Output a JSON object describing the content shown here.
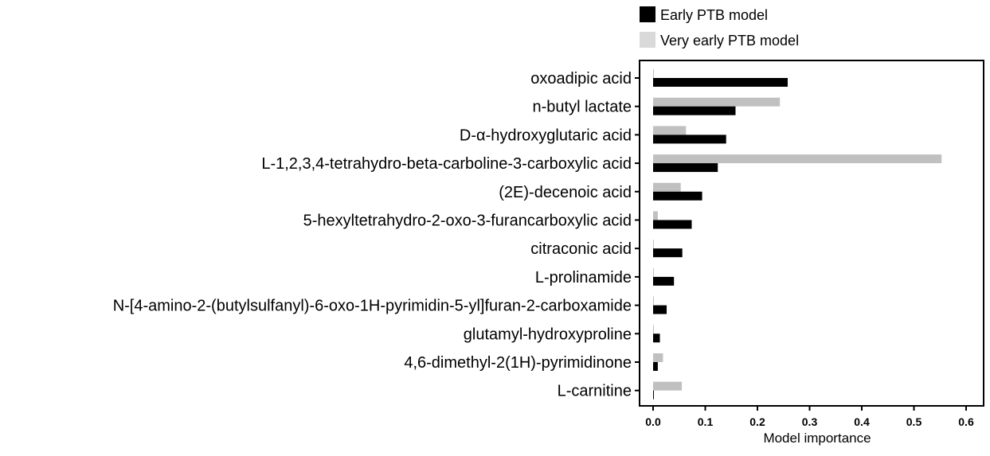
{
  "chart_data": {
    "type": "bar",
    "orientation": "horizontal",
    "categories": [
      "oxoadipic acid",
      "n-butyl lactate",
      "D-α-hydroxyglutaric acid",
      "L-1,2,3,4-tetrahydro-beta-carboline-3-carboxylic acid",
      "(2E)-decenoic acid",
      "5-hexyltetrahydro-2-oxo-3-furancarboxylic acid",
      "citraconic acid",
      "L-prolinamide",
      "N-[4-amino-2-(butylsulfanyl)-6-oxo-1H-pyrimidin-5-yl]furan-2-carboxamide",
      "glutamyl-hydroxyproline",
      "4,6-dimethyl-2(1H)-pyrimidinone",
      "L-carnitine"
    ],
    "series": [
      {
        "name": "Early PTB model",
        "color": "#000000",
        "values": [
          0.258,
          0.158,
          0.14,
          0.124,
          0.094,
          0.074,
          0.056,
          0.04,
          0.026,
          0.013,
          0.009,
          0.001
        ]
      },
      {
        "name": "Very early PTB model",
        "color": "#c0c0c0",
        "values": [
          0.001,
          0.243,
          0.063,
          0.553,
          0.053,
          0.009,
          0.001,
          0.001,
          0.001,
          0.001,
          0.019,
          0.055
        ]
      }
    ],
    "xlabel": "Model importance",
    "xlim": [
      -0.025,
      0.63
    ],
    "xticks": [
      "0.0",
      "0.1",
      "0.2",
      "0.3",
      "0.4",
      "0.5",
      "0.6"
    ],
    "grid": false,
    "legend_position": "top"
  }
}
